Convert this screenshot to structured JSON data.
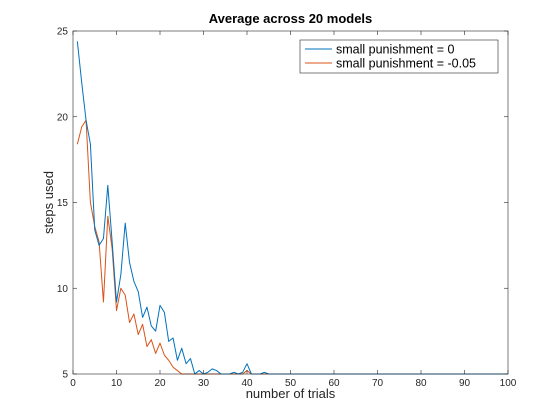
{
  "chart_data": {
    "type": "line",
    "title": "Average across 20 models",
    "xlabel": "number of trials",
    "ylabel": "steps used",
    "xlim": [
      0,
      100
    ],
    "ylim": [
      5,
      25
    ],
    "xticks": [
      0,
      10,
      20,
      30,
      40,
      50,
      60,
      70,
      80,
      90,
      100
    ],
    "yticks": [
      5,
      10,
      15,
      20,
      25
    ],
    "grid": false,
    "legend_position": "top-right",
    "series": [
      {
        "name": "small punishment = 0",
        "color": "#0072BD",
        "x": [
          1,
          2,
          3,
          4,
          5,
          6,
          7,
          8,
          9,
          10,
          11,
          12,
          13,
          14,
          15,
          16,
          17,
          18,
          19,
          20,
          21,
          22,
          23,
          24,
          25,
          26,
          27,
          28,
          29,
          30,
          31,
          32,
          33,
          34,
          35,
          36,
          37,
          38,
          39,
          40,
          41,
          42,
          43,
          44,
          45,
          46,
          100
        ],
        "y": [
          24.4,
          22.0,
          19.8,
          18.4,
          13.4,
          12.5,
          12.9,
          16.0,
          12.7,
          9.2,
          10.8,
          13.8,
          11.5,
          10.4,
          9.8,
          8.3,
          8.9,
          7.8,
          7.5,
          9.0,
          8.6,
          6.9,
          7.1,
          5.8,
          6.5,
          5.6,
          5.9,
          5.0,
          5.2,
          5.0,
          5.1,
          5.3,
          5.2,
          5.0,
          5.0,
          5.0,
          5.1,
          5.0,
          5.1,
          5.6,
          5.0,
          5.0,
          5.0,
          5.1,
          5.0,
          5.0,
          5.0
        ]
      },
      {
        "name": "small punishment = -0.05",
        "color": "#D95319",
        "x": [
          1,
          2,
          3,
          4,
          5,
          6,
          7,
          8,
          9,
          10,
          11,
          12,
          13,
          14,
          15,
          16,
          17,
          18,
          19,
          20,
          21,
          22,
          23,
          24,
          25,
          26,
          27,
          28,
          29,
          30,
          31,
          32,
          33,
          34,
          35,
          36,
          37,
          38,
          39,
          40,
          41,
          42,
          43,
          44,
          45,
          46,
          100
        ],
        "y": [
          18.4,
          19.4,
          19.8,
          15.0,
          13.6,
          12.7,
          9.2,
          14.2,
          12.3,
          8.7,
          10.0,
          9.6,
          8.0,
          8.5,
          7.3,
          7.9,
          6.6,
          7.0,
          6.2,
          6.8,
          6.1,
          5.8,
          5.4,
          5.2,
          5.0,
          5.0,
          5.0,
          5.0,
          5.0,
          5.0,
          5.0,
          5.0,
          5.0,
          5.0,
          5.0,
          5.0,
          5.0,
          5.0,
          5.0,
          5.2,
          5.0,
          5.0,
          5.0,
          5.0,
          5.0,
          5.0,
          5.0
        ]
      }
    ]
  }
}
